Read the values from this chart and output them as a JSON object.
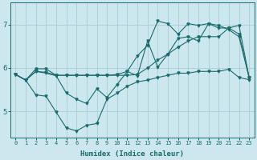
{
  "xlabel": "Humidex (Indice chaleur)",
  "xlim": [
    -0.5,
    23.5
  ],
  "ylim": [
    4.4,
    7.5
  ],
  "yticks": [
    5,
    6,
    7
  ],
  "xticks": [
    0,
    1,
    2,
    3,
    4,
    5,
    6,
    7,
    8,
    9,
    10,
    11,
    12,
    13,
    14,
    15,
    16,
    17,
    18,
    19,
    20,
    21,
    22,
    23
  ],
  "bg_color": "#cce8ee",
  "grid_color": "#aacdd5",
  "line_color": "#1a6b6b",
  "series": [
    [
      5.85,
      5.72,
      5.38,
      5.35,
      4.98,
      4.62,
      4.55,
      4.68,
      4.72,
      5.28,
      5.42,
      5.58,
      5.68,
      5.72,
      5.78,
      5.83,
      5.88,
      5.88,
      5.92,
      5.92,
      5.92,
      5.97,
      5.78,
      5.73
    ],
    [
      5.85,
      5.72,
      5.92,
      5.9,
      5.83,
      5.83,
      5.83,
      5.83,
      5.83,
      5.83,
      5.83,
      5.83,
      5.85,
      6.0,
      6.18,
      6.32,
      6.48,
      6.62,
      6.72,
      6.72,
      6.72,
      6.92,
      6.78,
      5.78
    ],
    [
      5.85,
      5.72,
      5.92,
      5.88,
      5.82,
      5.42,
      5.28,
      5.18,
      5.52,
      5.32,
      5.62,
      5.92,
      5.82,
      6.62,
      6.02,
      6.32,
      6.68,
      6.72,
      6.62,
      7.02,
      6.92,
      6.92,
      6.98,
      5.78
    ],
    [
      5.85,
      5.72,
      5.98,
      5.98,
      5.83,
      5.83,
      5.83,
      5.83,
      5.83,
      5.83,
      5.85,
      5.92,
      6.28,
      6.52,
      7.08,
      7.02,
      6.78,
      7.02,
      6.98,
      7.02,
      6.98,
      6.88,
      6.72,
      5.78
    ]
  ]
}
